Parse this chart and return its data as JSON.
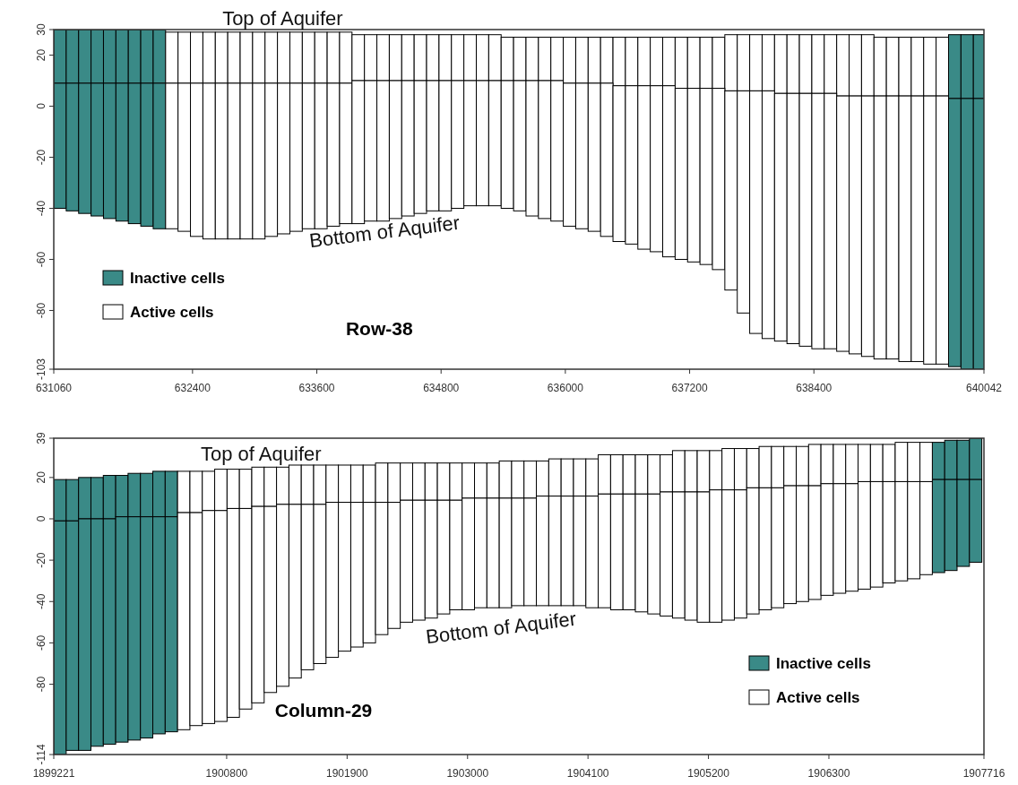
{
  "chart_data": [
    {
      "type": "bar",
      "title": "Row-38",
      "legend": "bottom left",
      "xlim": [
        631060,
        640042
      ],
      "ylim": [
        -103,
        30
      ],
      "xticks": [
        631060,
        632400,
        633600,
        634800,
        636000,
        637200,
        638400,
        640042
      ],
      "yticks": [
        30,
        20,
        0,
        -20,
        -40,
        -60,
        -80,
        -103
      ],
      "annotations": [
        {
          "text": "Top of Aquifer",
          "x": 633270,
          "y": 30
        },
        "Bottom of Aquifer"
      ],
      "x": [
        631120,
        631240,
        631360,
        631480,
        631600,
        631720,
        631840,
        631960,
        632080,
        632200,
        632320,
        632440,
        632560,
        632680,
        632800,
        632920,
        633040,
        633160,
        633280,
        633400,
        633520,
        633640,
        633760,
        633880,
        634000,
        634120,
        634240,
        634360,
        634480,
        634600,
        634720,
        634840,
        634960,
        635080,
        635200,
        635320,
        635440,
        635560,
        635680,
        635800,
        635920,
        636040,
        636160,
        636280,
        636400,
        636520,
        636640,
        636760,
        636880,
        637000,
        637120,
        637240,
        637360,
        637480,
        637600,
        637720,
        637840,
        637960,
        638080,
        638200,
        638320,
        638440,
        638560,
        638680,
        638800,
        638920,
        639040,
        639160,
        639280,
        639400,
        639520,
        639640,
        639760,
        639880,
        640000
      ],
      "series": [
        {
          "name": "Inactive cells",
          "color": "#3a8a87",
          "values": [
            21,
            21,
            21,
            21,
            21,
            21,
            21,
            21,
            21,
            null,
            null,
            null,
            null,
            null,
            null,
            null,
            null,
            null,
            null,
            null,
            null,
            null,
            null,
            null,
            null,
            null,
            null,
            null,
            null,
            null,
            null,
            null,
            null,
            null,
            null,
            null,
            null,
            null,
            null,
            null,
            null,
            null,
            null,
            null,
            null,
            null,
            null,
            null,
            null,
            null,
            null,
            null,
            null,
            null,
            null,
            null,
            null,
            null,
            null,
            null,
            null,
            null,
            null,
            null,
            null,
            null,
            null,
            null,
            null,
            null,
            null,
            null,
            25,
            25,
            25
          ],
          "base": [
            9,
            9,
            9,
            9,
            9,
            9,
            9,
            9,
            9,
            null,
            null,
            null,
            null,
            null,
            null,
            null,
            null,
            null,
            null,
            null,
            null,
            null,
            null,
            null,
            null,
            null,
            null,
            null,
            null,
            null,
            null,
            null,
            null,
            null,
            null,
            null,
            null,
            null,
            null,
            null,
            null,
            null,
            null,
            null,
            null,
            null,
            null,
            null,
            null,
            null,
            null,
            null,
            null,
            null,
            null,
            null,
            null,
            null,
            null,
            null,
            null,
            null,
            null,
            null,
            null,
            null,
            null,
            null,
            null,
            null,
            null,
            null,
            3,
            3,
            3
          ]
        },
        {
          "color": "#3a8a87",
          "values": [
            49,
            50,
            51,
            52,
            53,
            54,
            55,
            56,
            57,
            null,
            null,
            null,
            null,
            null,
            null,
            null,
            null,
            null,
            null,
            null,
            null,
            null,
            null,
            null,
            null,
            null,
            null,
            null,
            null,
            null,
            null,
            null,
            null,
            null,
            null,
            null,
            null,
            null,
            null,
            null,
            null,
            null,
            null,
            null,
            null,
            null,
            null,
            null,
            null,
            null,
            null,
            null,
            null,
            null,
            null,
            null,
            null,
            null,
            null,
            null,
            null,
            null,
            null,
            null,
            null,
            null,
            null,
            null,
            null,
            null,
            null,
            null,
            105,
            106,
            106
          ],
          "base": [
            -40,
            -41,
            -42,
            -43,
            -44,
            -45,
            -46,
            -47,
            -48,
            null,
            null,
            null,
            null,
            null,
            null,
            null,
            null,
            null,
            null,
            null,
            null,
            null,
            null,
            null,
            null,
            null,
            null,
            null,
            null,
            null,
            null,
            null,
            null,
            null,
            null,
            null,
            null,
            null,
            null,
            null,
            null,
            null,
            null,
            null,
            null,
            null,
            null,
            null,
            null,
            null,
            null,
            null,
            null,
            null,
            null,
            null,
            null,
            null,
            null,
            null,
            null,
            null,
            null,
            null,
            null,
            null,
            null,
            null,
            null,
            null,
            null,
            null,
            -102,
            -103,
            -103
          ]
        },
        {
          "name": "Active cells",
          "color": "#ffffff",
          "values": [
            null,
            null,
            null,
            null,
            null,
            null,
            null,
            null,
            null,
            20,
            20,
            20,
            20,
            20,
            20,
            20,
            20,
            20,
            20,
            20,
            20,
            20,
            20,
            20,
            18,
            18,
            18,
            18,
            18,
            18,
            18,
            18,
            18,
            18,
            18,
            18,
            17,
            17,
            17,
            17,
            17,
            18,
            18,
            18,
            18,
            19,
            19,
            19,
            19,
            19,
            20,
            20,
            20,
            20,
            22,
            22,
            22,
            22,
            23,
            23,
            23,
            23,
            23,
            24,
            24,
            24,
            23,
            23,
            23,
            23,
            23,
            23,
            null,
            null,
            null
          ],
          "base": [
            null,
            null,
            null,
            null,
            null,
            null,
            null,
            null,
            null,
            9,
            9,
            9,
            9,
            9,
            9,
            9,
            9,
            9,
            9,
            9,
            9,
            9,
            9,
            9,
            10,
            10,
            10,
            10,
            10,
            10,
            10,
            10,
            10,
            10,
            10,
            10,
            10,
            10,
            10,
            10,
            10,
            9,
            9,
            9,
            9,
            8,
            8,
            8,
            8,
            8,
            7,
            7,
            7,
            7,
            6,
            6,
            6,
            6,
            5,
            5,
            5,
            5,
            5,
            4,
            4,
            4,
            4,
            4,
            4,
            4,
            4,
            4,
            null,
            null,
            null
          ]
        },
        {
          "color": "#ffffff",
          "values": [
            null,
            null,
            null,
            null,
            null,
            null,
            null,
            null,
            null,
            57,
            58,
            60,
            61,
            61,
            61,
            61,
            61,
            60,
            59,
            58,
            57,
            57,
            56,
            55,
            56,
            55,
            55,
            54,
            53,
            52,
            51,
            51,
            50,
            49,
            49,
            49,
            50,
            51,
            53,
            54,
            55,
            56,
            57,
            58,
            60,
            61,
            62,
            64,
            65,
            67,
            67,
            68,
            69,
            71,
            78,
            87,
            95,
            97,
            97,
            98,
            99,
            100,
            100,
            100,
            101,
            102,
            103,
            103,
            104,
            104,
            105,
            105,
            null,
            null,
            null
          ],
          "base": [
            null,
            null,
            null,
            null,
            null,
            null,
            null,
            null,
            null,
            -48,
            -49,
            -51,
            -52,
            -52,
            -52,
            -52,
            -52,
            -51,
            -50,
            -49,
            -48,
            -48,
            -47,
            -46,
            -46,
            -45,
            -45,
            -44,
            -43,
            -42,
            -41,
            -41,
            -40,
            -39,
            -39,
            -39,
            -40,
            -41,
            -43,
            -44,
            -45,
            -47,
            -48,
            -49,
            -51,
            -53,
            -54,
            -56,
            -57,
            -59,
            -60,
            -61,
            -62,
            -64,
            -72,
            -81,
            -89,
            -91,
            -92,
            -93,
            -94,
            -95,
            -95,
            -96,
            -97,
            -98,
            -99,
            -99,
            -100,
            -100,
            -101,
            -101,
            null,
            null,
            null
          ]
        }
      ]
    },
    {
      "type": "bar",
      "title": "Column-29",
      "legend": "bottom right",
      "xlim": [
        1899221,
        1907716
      ],
      "ylim": [
        -114,
        39
      ],
      "xticks": [
        1899221,
        1900800,
        1901900,
        1903000,
        1904100,
        1905200,
        1906300,
        1907716
      ],
      "yticks": [
        39,
        20,
        0,
        -20,
        -40,
        -60,
        -80,
        -114
      ],
      "annotations": [
        {
          "text": "Top of Aquifer",
          "x": 1901114,
          "y": 26
        },
        "Bottom of Aquifer"
      ],
      "x": [
        1899278,
        1899391,
        1899504,
        1899617,
        1899730,
        1899843,
        1899956,
        1900069,
        1900182,
        1900295,
        1900408,
        1900521,
        1900634,
        1900747,
        1900860,
        1900973,
        1901086,
        1901199,
        1901312,
        1901425,
        1901538,
        1901651,
        1901764,
        1901877,
        1901990,
        1902103,
        1902216,
        1902329,
        1902442,
        1902555,
        1902668,
        1902781,
        1902894,
        1903007,
        1903120,
        1903233,
        1903346,
        1903459,
        1903572,
        1903685,
        1903798,
        1903911,
        1904024,
        1904137,
        1904250,
        1904363,
        1904476,
        1904589,
        1904702,
        1904815,
        1904928,
        1905041,
        1905154,
        1905267,
        1905380,
        1905493,
        1905606,
        1905719,
        1905832,
        1905945,
        1906058,
        1906171,
        1906284,
        1906397,
        1906510,
        1906623,
        1906736,
        1906849,
        1906962,
        1907075,
        1907188,
        1907301,
        1907414,
        1907527,
        1907640
      ],
      "series": [
        {
          "name": "Inactive cells",
          "color": "#3a8a87",
          "values": [
            20,
            20,
            20,
            20,
            21,
            20,
            21,
            21,
            22,
            22,
            null,
            null,
            null,
            null,
            null,
            null,
            null,
            null,
            null,
            null,
            null,
            null,
            null,
            null,
            null,
            null,
            null,
            null,
            null,
            null,
            null,
            null,
            null,
            null,
            null,
            null,
            null,
            null,
            null,
            null,
            null,
            null,
            null,
            null,
            null,
            null,
            null,
            null,
            null,
            null,
            null,
            null,
            null,
            null,
            null,
            null,
            null,
            null,
            null,
            null,
            null,
            null,
            null,
            null,
            null,
            null,
            null,
            null,
            null,
            null,
            null,
            18,
            19,
            19,
            20
          ],
          "base": [
            -1,
            -1,
            0,
            0,
            0,
            1,
            1,
            1,
            1,
            1,
            null,
            null,
            null,
            null,
            null,
            null,
            null,
            null,
            null,
            null,
            null,
            null,
            null,
            null,
            null,
            null,
            null,
            null,
            null,
            null,
            null,
            null,
            null,
            null,
            null,
            null,
            null,
            null,
            null,
            null,
            null,
            null,
            null,
            null,
            null,
            null,
            null,
            null,
            null,
            null,
            null,
            null,
            null,
            null,
            null,
            null,
            null,
            null,
            null,
            null,
            null,
            null,
            null,
            null,
            null,
            null,
            null,
            null,
            null,
            null,
            null,
            19,
            19,
            19,
            19
          ]
        },
        {
          "color": "#3a8a87",
          "values": [
            113,
            111,
            112,
            110,
            109,
            109,
            108,
            107,
            105,
            104,
            null,
            null,
            null,
            null,
            null,
            null,
            null,
            null,
            null,
            null,
            null,
            null,
            null,
            null,
            null,
            null,
            null,
            null,
            null,
            null,
            null,
            null,
            null,
            null,
            null,
            null,
            null,
            null,
            null,
            null,
            null,
            null,
            null,
            null,
            null,
            null,
            null,
            null,
            null,
            null,
            null,
            null,
            null,
            null,
            null,
            null,
            null,
            null,
            null,
            null,
            null,
            null,
            null,
            null,
            null,
            null,
            null,
            null,
            null,
            null,
            null,
            45,
            44,
            42,
            40
          ],
          "base": [
            -114,
            -112,
            -112,
            -110,
            -109,
            -108,
            -107,
            -106,
            -104,
            -103,
            null,
            null,
            null,
            null,
            null,
            null,
            null,
            null,
            null,
            null,
            null,
            null,
            null,
            null,
            null,
            null,
            null,
            null,
            null,
            null,
            null,
            null,
            null,
            null,
            null,
            null,
            null,
            null,
            null,
            null,
            null,
            null,
            null,
            null,
            null,
            null,
            null,
            null,
            null,
            null,
            null,
            null,
            null,
            null,
            null,
            null,
            null,
            null,
            null,
            null,
            null,
            null,
            null,
            null,
            null,
            null,
            null,
            null,
            null,
            null,
            null,
            -26,
            -25,
            -23,
            -21
          ]
        },
        {
          "name": "Active cells",
          "color": "#ffffff",
          "values": [
            null,
            null,
            null,
            null,
            null,
            null,
            null,
            null,
            null,
            null,
            20,
            20,
            19,
            20,
            19,
            19,
            19,
            19,
            18,
            19,
            19,
            19,
            18,
            18,
            18,
            18,
            19,
            19,
            18,
            18,
            18,
            18,
            18,
            17,
            17,
            17,
            18,
            18,
            18,
            17,
            18,
            18,
            18,
            18,
            19,
            19,
            19,
            19,
            19,
            18,
            20,
            20,
            20,
            19,
            20,
            20,
            19,
            20,
            20,
            19,
            19,
            20,
            19,
            19,
            19,
            18,
            18,
            18,
            19,
            19,
            19,
            null,
            null,
            null,
            null
          ],
          "base": [
            null,
            null,
            null,
            null,
            null,
            null,
            null,
            null,
            null,
            null,
            3,
            3,
            4,
            4,
            5,
            5,
            6,
            6,
            7,
            7,
            7,
            7,
            8,
            8,
            8,
            8,
            8,
            8,
            9,
            9,
            9,
            9,
            9,
            10,
            10,
            10,
            10,
            10,
            10,
            11,
            11,
            11,
            11,
            11,
            12,
            12,
            12,
            12,
            12,
            13,
            13,
            13,
            13,
            14,
            14,
            14,
            15,
            15,
            15,
            16,
            16,
            16,
            17,
            17,
            17,
            18,
            18,
            18,
            18,
            18,
            18,
            null,
            null,
            null,
            null
          ]
        },
        {
          "color": "#ffffff",
          "values": [
            null,
            null,
            null,
            null,
            null,
            null,
            null,
            null,
            null,
            null,
            105,
            103,
            103,
            102,
            101,
            97,
            95,
            90,
            88,
            84,
            80,
            77,
            75,
            72,
            70,
            68,
            64,
            61,
            59,
            58,
            57,
            55,
            53,
            54,
            53,
            53,
            53,
            52,
            52,
            53,
            53,
            53,
            53,
            54,
            55,
            56,
            56,
            57,
            58,
            60,
            61,
            62,
            63,
            64,
            63,
            62,
            61,
            59,
            58,
            57,
            56,
            55,
            54,
            53,
            52,
            52,
            51,
            49,
            48,
            47,
            45,
            null,
            null,
            null,
            null
          ],
          "base": [
            null,
            null,
            null,
            null,
            null,
            null,
            null,
            null,
            null,
            null,
            -102,
            -100,
            -99,
            -98,
            -96,
            -92,
            -89,
            -84,
            -81,
            -77,
            -73,
            -70,
            -67,
            -64,
            -62,
            -60,
            -56,
            -53,
            -50,
            -49,
            -48,
            -46,
            -44,
            -44,
            -43,
            -43,
            -43,
            -42,
            -42,
            -42,
            -42,
            -42,
            -42,
            -43,
            -43,
            -44,
            -44,
            -45,
            -46,
            -47,
            -48,
            -49,
            -50,
            -50,
            -49,
            -48,
            -46,
            -44,
            -43,
            -41,
            -40,
            -39,
            -37,
            -36,
            -35,
            -34,
            -33,
            -31,
            -30,
            -29,
            -27,
            null,
            null,
            null,
            null
          ]
        }
      ]
    }
  ]
}
